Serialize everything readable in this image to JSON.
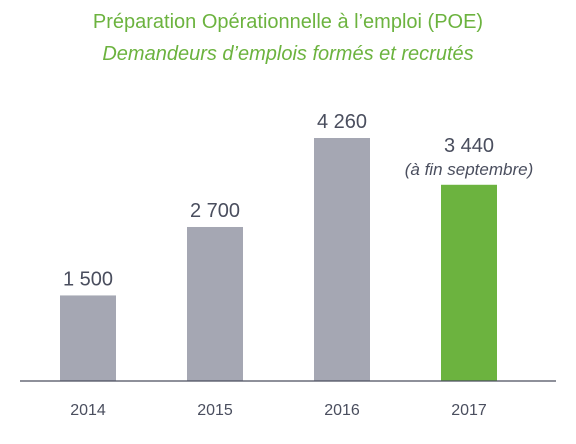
{
  "chart_data": {
    "type": "bar",
    "title": "Préparation Opérationnelle à l’emploi (POE)",
    "subtitle": "Demandeurs d’emplois formés et recrutés",
    "categories": [
      "2014",
      "2015",
      "2016",
      "2017"
    ],
    "values": [
      1500,
      2700,
      4260,
      3440
    ],
    "value_labels": [
      "1 500",
      "2 700",
      "4 260",
      "3 440"
    ],
    "annotations": [
      "",
      "",
      "",
      "(à fin septembre)"
    ],
    "colors": [
      "#a5a7b3",
      "#a5a7b3",
      "#a5a7b3",
      "#6cb33f"
    ],
    "ylim": [
      0,
      4260
    ],
    "grid": false,
    "legend": "none"
  }
}
